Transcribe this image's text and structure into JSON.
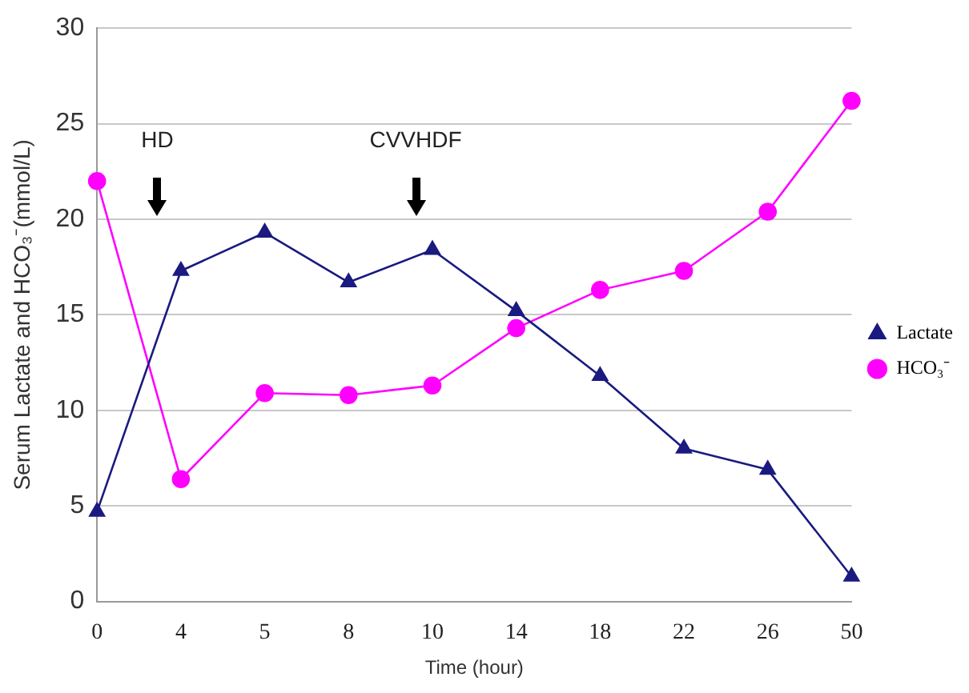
{
  "chart_data": {
    "type": "line",
    "xlabel": "Time (hour)",
    "ylabel": "Serum Lactate and HCO₃⁻(mmol/L)",
    "categories": [
      "0",
      "4",
      "5",
      "8",
      "10",
      "14",
      "18",
      "22",
      "26",
      "50"
    ],
    "series": [
      {
        "name": "Lactate",
        "color": "#1a1a80",
        "marker": "triangle",
        "values": [
          4.7,
          17.3,
          19.3,
          16.7,
          18.4,
          15.2,
          11.8,
          8.0,
          6.9,
          1.3
        ]
      },
      {
        "name": "HCO₃⁻",
        "color": "#ff00ff",
        "marker": "circle",
        "values": [
          22.0,
          6.4,
          10.9,
          10.8,
          11.3,
          14.3,
          16.3,
          17.3,
          20.4,
          26.2
        ]
      }
    ],
    "ylim": [
      0,
      30
    ],
    "yticks": [
      0,
      5,
      10,
      15,
      20,
      25,
      30
    ],
    "grid": "y",
    "legend": "right",
    "annotations": [
      "HD",
      "CVVHDF"
    ]
  }
}
